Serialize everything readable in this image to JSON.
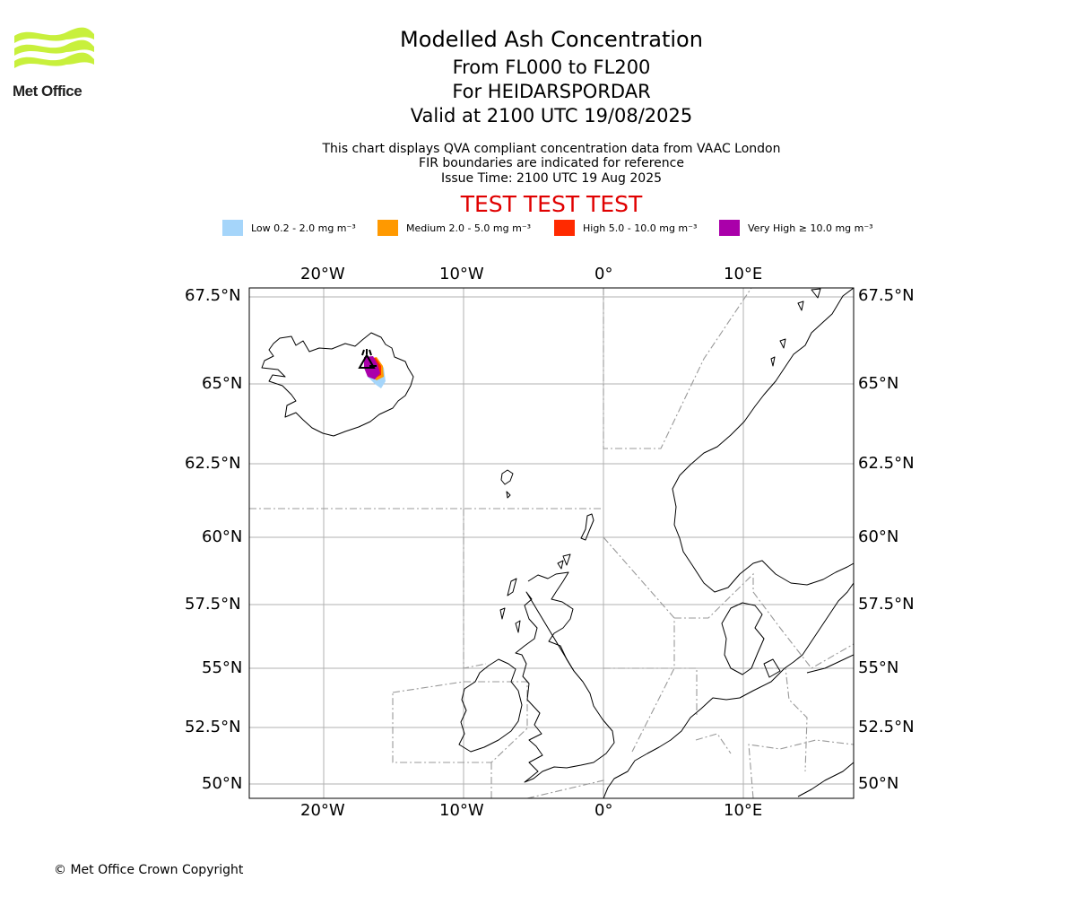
{
  "logo": {
    "text": "Met Office",
    "color": "#c8f03c"
  },
  "header": {
    "title": "Modelled Ash Concentration",
    "levels": "From FL000 to FL200",
    "volcano": "For HEIDARSPORDAR",
    "valid": "Valid at 2100 UTC 19/08/2025"
  },
  "info": {
    "line1": "This chart displays QVA compliant concentration data from VAAC London",
    "line2": "FIR boundaries are indicated for reference",
    "line3": "Issue Time: 2100 UTC 19 Aug 2025"
  },
  "banner": {
    "text": "TEST TEST TEST",
    "color": "#e00000"
  },
  "legend": [
    {
      "label": "Low 0.2 - 2.0 mg m⁻³",
      "color": "#a5d5fa"
    },
    {
      "label": "Medium 2.0 - 5.0 mg m⁻³",
      "color": "#ff9900"
    },
    {
      "label": "High 5.0 - 10.0 mg m⁻³",
      "color": "#ff2a00"
    },
    {
      "label": "Very High  ≥  10.0 mg m⁻³",
      "color": "#aa00aa"
    }
  ],
  "map": {
    "lon_ticks": [
      "20°W",
      "10°W",
      "0°",
      "10°E"
    ],
    "lat_ticks": [
      "67.5°N",
      "65°N",
      "62.5°N",
      "60°N",
      "57.5°N",
      "55°N",
      "52.5°N",
      "50°N"
    ]
  },
  "footer": {
    "copyright": "© Met Office Crown Copyright"
  }
}
